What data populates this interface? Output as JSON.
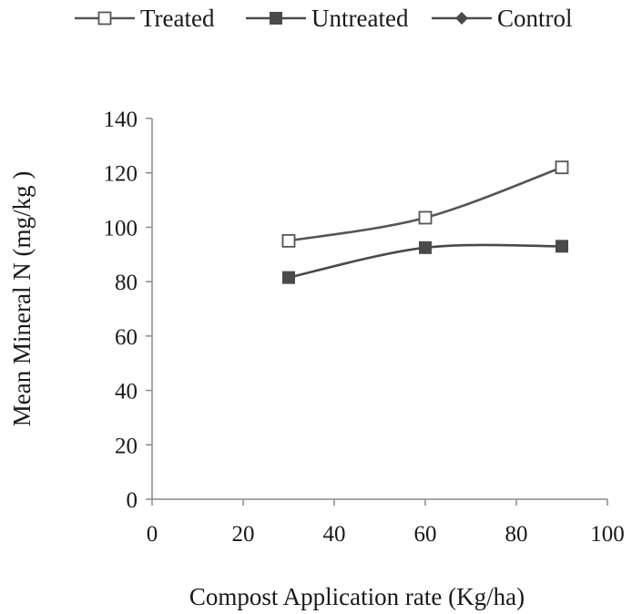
{
  "chart_data": {
    "type": "line",
    "title": "",
    "xlabel": "Compost Application rate (Kg/ha)",
    "ylabel": "Mean Mineral N (mg/kg )",
    "xlim": [
      0,
      100
    ],
    "ylim": [
      0,
      140
    ],
    "x_ticks": [
      0,
      20,
      40,
      60,
      80,
      100
    ],
    "y_ticks": [
      0,
      20,
      40,
      60,
      80,
      100,
      120,
      140
    ],
    "grid": false,
    "legend_position": "top",
    "smooth": true,
    "series": [
      {
        "name": "Treated",
        "marker": "open-square",
        "color": "#555555",
        "x": [
          30,
          60,
          90
        ],
        "y": [
          95,
          103.5,
          122
        ]
      },
      {
        "name": "Untreated",
        "marker": "filled-square",
        "color": "#4a4a4a",
        "x": [
          30,
          60,
          90
        ],
        "y": [
          81.5,
          92.5,
          93
        ]
      },
      {
        "name": "Control",
        "marker": "filled-diamond",
        "color": "#4a4a4a",
        "x": [],
        "y": []
      }
    ]
  }
}
